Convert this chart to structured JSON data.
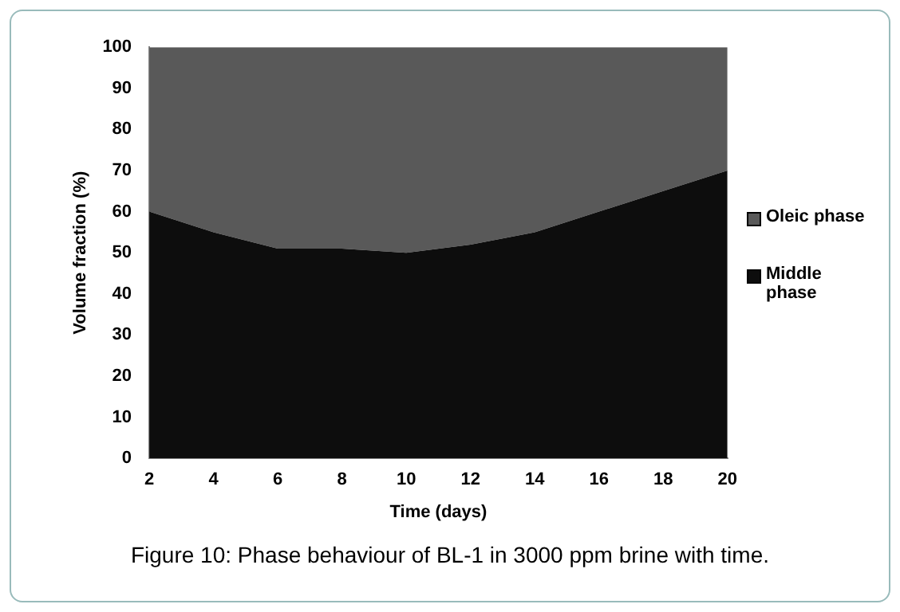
{
  "chart_data": {
    "type": "area",
    "stacked": true,
    "xlabel": "Time (days)",
    "ylabel": "Volume fraction (%)",
    "x": [
      2,
      4,
      6,
      8,
      10,
      12,
      14,
      16,
      18,
      20
    ],
    "series": [
      {
        "name": "Middle phase",
        "color": "#0d0d0d",
        "values": [
          60,
          55,
          51,
          51,
          50,
          52,
          55,
          60,
          65,
          70
        ]
      },
      {
        "name": "Oleic phase",
        "color": "#595959",
        "values": [
          40,
          45,
          49,
          49,
          50,
          48,
          45,
          40,
          35,
          30
        ]
      }
    ],
    "xlim": [
      2,
      20
    ],
    "xticks": [
      2,
      4,
      6,
      8,
      10,
      12,
      14,
      16,
      18,
      20
    ],
    "ylim": [
      0,
      100
    ],
    "yticks": [
      0,
      10,
      20,
      30,
      40,
      50,
      60,
      70,
      80,
      90,
      100
    ],
    "grid": false,
    "legend": "right",
    "annotations": [
      "Figure 10: Phase behaviour of BL-1 in 3000 ppm brine with time."
    ]
  }
}
